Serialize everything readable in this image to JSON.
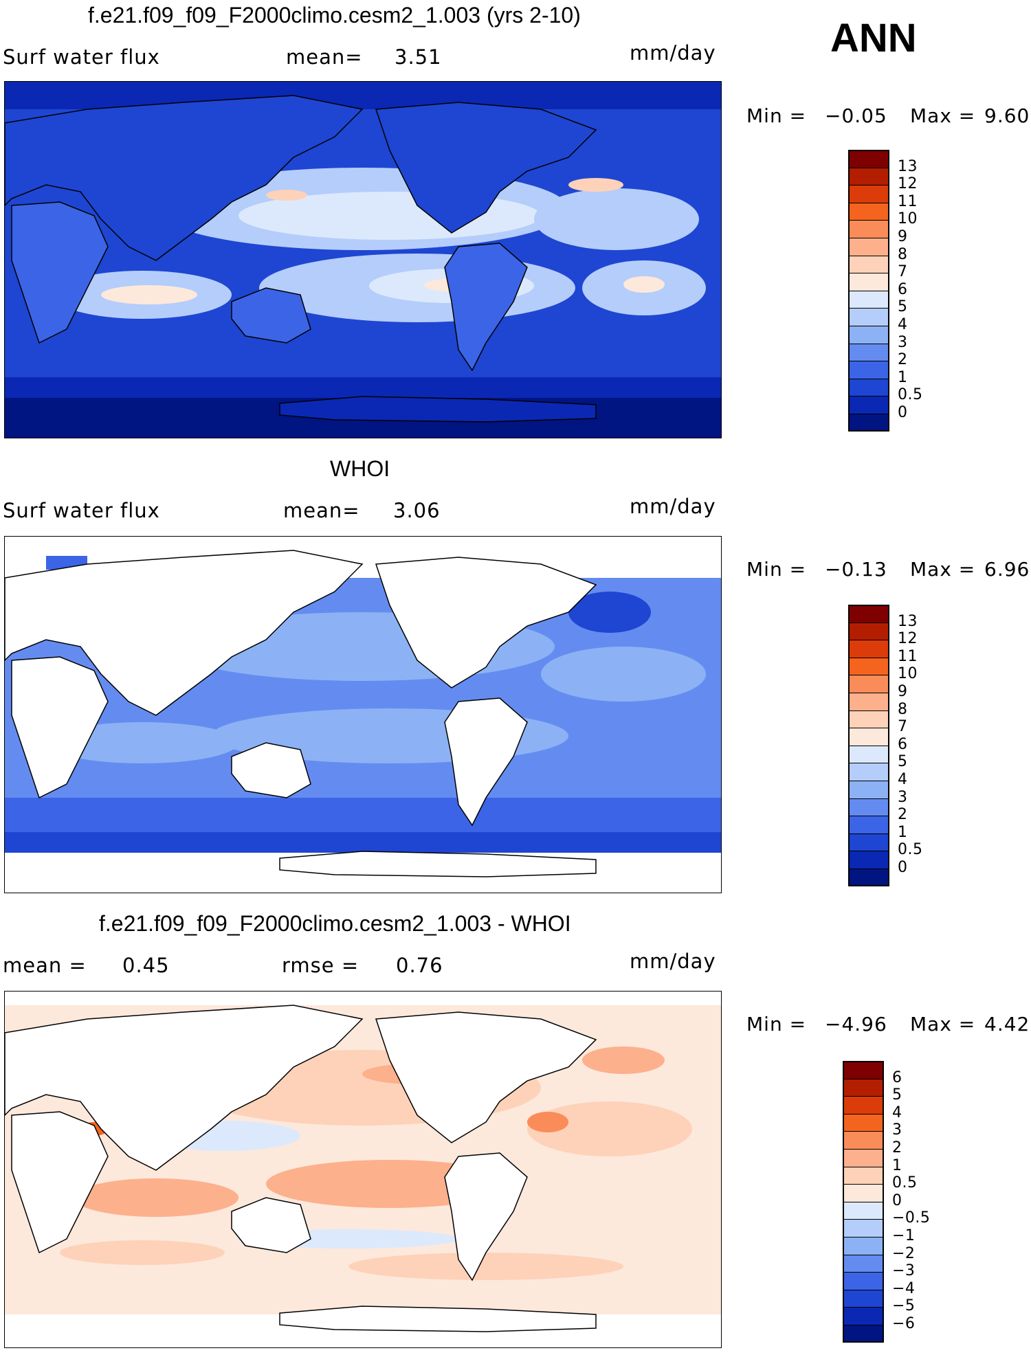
{
  "season": "ANN",
  "panels": [
    {
      "id": "model",
      "title": "f.e21.f09_f09_F2000climo.cesm2_1.003 (yrs 2-10)",
      "variable": "Surf  water  flux",
      "stat_label": "mean=",
      "stat_value": "3.51",
      "units": "mm/day",
      "min_label": "Min  =",
      "min_value": "−0.05",
      "max_label": "Max  =",
      "max_value": "9.60",
      "colorbar": {
        "levels": [
          "13",
          "12",
          "11",
          "10",
          "9",
          "8",
          "7",
          "6",
          "5",
          "4",
          "3",
          "2",
          "1",
          "0.5",
          "0"
        ],
        "colors": [
          "#7f0000",
          "#b41e00",
          "#dc3c0a",
          "#f5641e",
          "#fa8c5a",
          "#fcb08c",
          "#fdd2b8",
          "#fde8dc",
          "#dce9fc",
          "#b4cdfa",
          "#8cb2f5",
          "#648cf0",
          "#3c64e6",
          "#1e46d2",
          "#0a28b4",
          "#001482"
        ]
      }
    },
    {
      "id": "obs",
      "title": "WHOI",
      "variable": "Surf  water  flux",
      "stat_label": "mean=",
      "stat_value": "3.06",
      "units": "mm/day",
      "min_label": "Min  =",
      "min_value": "−0.13",
      "max_label": "Max  =",
      "max_value": "6.96",
      "colorbar": {
        "levels": [
          "13",
          "12",
          "11",
          "10",
          "9",
          "8",
          "7",
          "6",
          "5",
          "4",
          "3",
          "2",
          "1",
          "0.5",
          "0"
        ],
        "colors": [
          "#7f0000",
          "#b41e00",
          "#dc3c0a",
          "#f5641e",
          "#fa8c5a",
          "#fcb08c",
          "#fdd2b8",
          "#fde8dc",
          "#dce9fc",
          "#b4cdfa",
          "#8cb2f5",
          "#648cf0",
          "#3c64e6",
          "#1e46d2",
          "#0a28b4",
          "#001482"
        ]
      }
    },
    {
      "id": "diff",
      "title": "f.e21.f09_f09_F2000climo.cesm2_1.003 - WHOI",
      "stat_label": "mean  =",
      "stat_value": "0.45",
      "rmse_label": "rmse  =",
      "rmse_value": "0.76",
      "units": "mm/day",
      "min_label": "Min  =",
      "min_value": "−4.96",
      "max_label": "Max  =",
      "max_value": "4.42",
      "colorbar": {
        "levels": [
          "6",
          "5",
          "4",
          "3",
          "2",
          "1",
          "0.5",
          "0",
          "−0.5",
          "−1",
          "−2",
          "−3",
          "−4",
          "−5",
          "−6"
        ],
        "colors": [
          "#7f0000",
          "#b41e00",
          "#dc3c0a",
          "#f5641e",
          "#fa8c5a",
          "#fcb08c",
          "#fdd2b8",
          "#fde8dc",
          "#dce9fc",
          "#b4cdfa",
          "#8cb2f5",
          "#648cf0",
          "#3c64e6",
          "#1e46d2",
          "#0a28b4",
          "#001482"
        ]
      }
    }
  ]
}
